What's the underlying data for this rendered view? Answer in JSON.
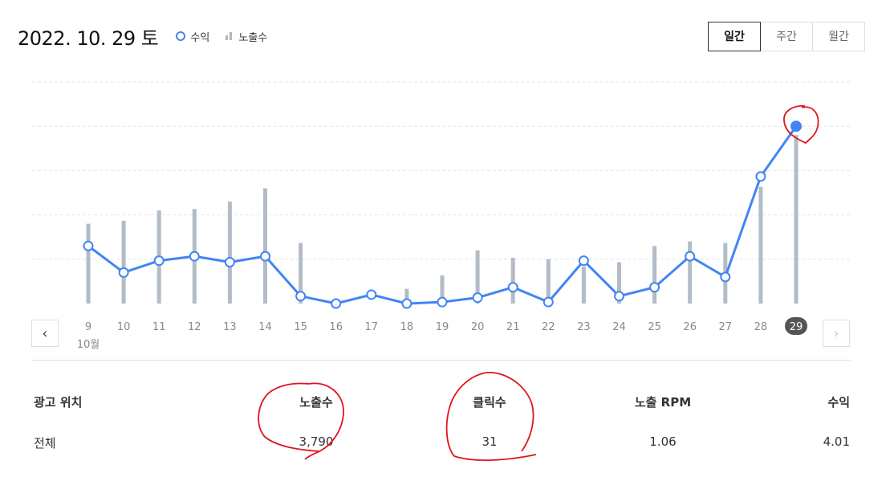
{
  "header": {
    "date": "2022. 10. 29 토",
    "legend": {
      "revenue": "수익",
      "impressions": "노출수"
    }
  },
  "period_tabs": [
    {
      "label": "일간",
      "active": true
    },
    {
      "label": "주간",
      "active": false
    },
    {
      "label": "월간",
      "active": false
    }
  ],
  "navigation": {
    "prev_icon": "chevron-left-icon",
    "next_icon": "chevron-right-icon"
  },
  "chart_data": {
    "type": "bar+line",
    "x": [
      "9",
      "10",
      "11",
      "12",
      "13",
      "14",
      "15",
      "16",
      "17",
      "18",
      "19",
      "20",
      "21",
      "22",
      "23",
      "24",
      "25",
      "26",
      "27",
      "28",
      "29"
    ],
    "month_label": "10월",
    "selected_x": "29",
    "series": [
      {
        "name": "노출수",
        "type": "bar",
        "color": "#b3bcc6",
        "values": [
          27,
          28,
          31.5,
          32,
          34.5,
          39,
          20.5,
          0,
          0,
          5,
          9.5,
          18,
          15.5,
          15,
          12.5,
          14,
          19.5,
          21,
          20.5,
          39.5,
          57
        ]
      },
      {
        "name": "수익",
        "type": "line",
        "color": "#4185f4",
        "values": [
          19.5,
          10.5,
          14.5,
          16,
          14,
          16,
          2.5,
          0,
          3,
          0,
          0.5,
          2,
          5.5,
          0.5,
          14.5,
          2.5,
          5.5,
          16,
          9,
          43,
          60
        ]
      }
    ],
    "ylim": [
      0,
      75
    ],
    "grid": true,
    "legend_position": "top-left"
  },
  "table": {
    "headers": [
      "광고 위치",
      "노출수",
      "클릭수",
      "노출 RPM",
      "수익"
    ],
    "rows": [
      [
        "전체",
        "3,790",
        "31",
        "1.06",
        "4.01"
      ]
    ]
  },
  "colors": {
    "line": "#4185f4",
    "bar": "#b3bcc6",
    "annotation": "#e0141e",
    "selected_badge": "#555555"
  }
}
